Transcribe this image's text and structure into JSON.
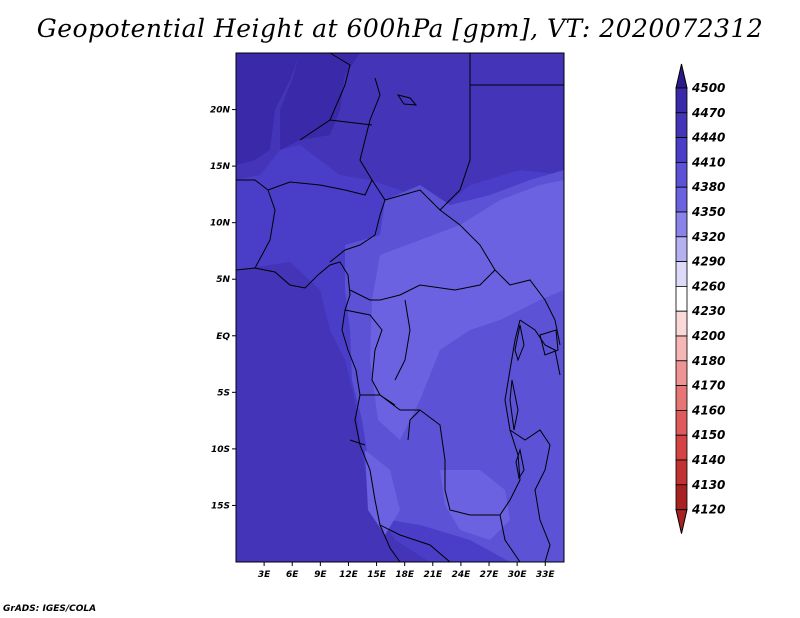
{
  "title": "Geopotential Height at 600hPa [gpm], VT: 2020072312",
  "credit": "GrADS: IGES/COLA",
  "map": {
    "lon_range": [
      0,
      35
    ],
    "lat_range": [
      -20,
      25
    ],
    "lon_ticks": [
      "3E",
      "6E",
      "9E",
      "12E",
      "15E",
      "18E",
      "21E",
      "24E",
      "27E",
      "30E",
      "33E"
    ],
    "lat_ticks": [
      "20N",
      "15N",
      "10N",
      "5N",
      "EQ",
      "5S",
      "10S",
      "15S"
    ],
    "fill_colors": {
      "4470": "#3a2aaa",
      "4440": "#4334b8",
      "4410": "#4a3ec8",
      "4380": "#5b52d6",
      "4350": "#6a62e0"
    }
  },
  "colorbar": {
    "levels": [
      "4500",
      "4470",
      "4440",
      "4410",
      "4380",
      "4350",
      "4320",
      "4290",
      "4260",
      "4230",
      "4200",
      "4180",
      "4170",
      "4160",
      "4150",
      "4140",
      "4130",
      "4120"
    ],
    "colors": [
      "#2a1a8a",
      "#3a2aaa",
      "#4334b8",
      "#4a3ec8",
      "#5b52d6",
      "#6a62e0",
      "#8a84ea",
      "#b4b0f2",
      "#dcdaf8",
      "#ffffff",
      "#fbd9d9",
      "#f6b6b6",
      "#ef9494",
      "#e67676",
      "#df5a5a",
      "#d44444",
      "#c23232",
      "#a82222"
    ]
  }
}
